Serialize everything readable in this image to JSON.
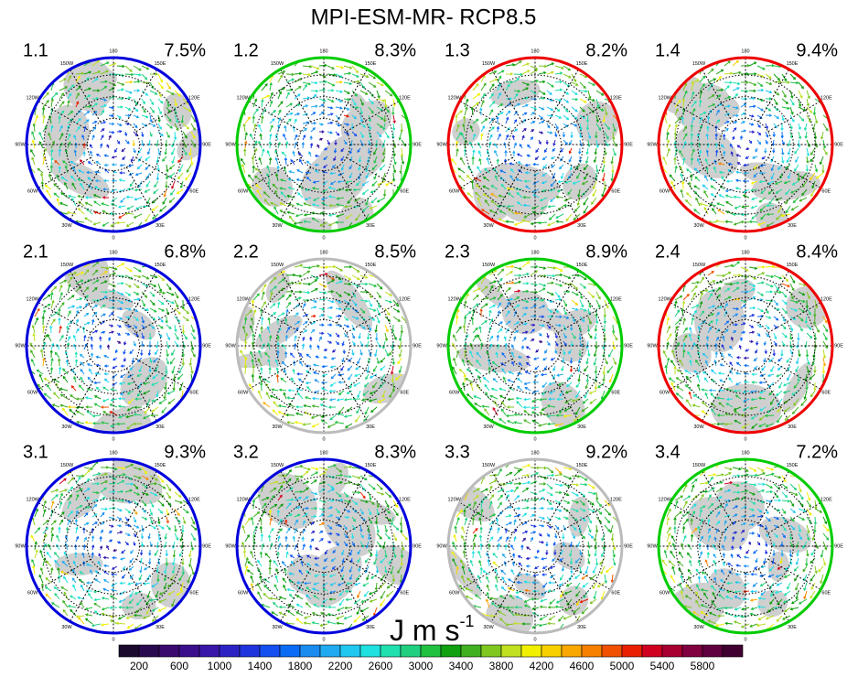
{
  "title": "MPI-ESM-MR- RCP8.5",
  "longitude_labels": [
    "180",
    "150E",
    "120E",
    "90E",
    "60E",
    "30E",
    "0",
    "30W",
    "60W",
    "90W",
    "120W",
    "150W"
  ],
  "panels": [
    {
      "label": "1.1",
      "percent": "7.5%",
      "border_color": "#0000dd"
    },
    {
      "label": "1.2",
      "percent": "8.3%",
      "border_color": "#00cc00"
    },
    {
      "label": "1.3",
      "percent": "8.2%",
      "border_color": "#ee0000"
    },
    {
      "label": "1.4",
      "percent": "9.4%",
      "border_color": "#ee0000"
    },
    {
      "label": "2.1",
      "percent": "6.8%",
      "border_color": "#0000dd"
    },
    {
      "label": "2.2",
      "percent": "8.5%",
      "border_color": "#bbbbbb"
    },
    {
      "label": "2.3",
      "percent": "8.9%",
      "border_color": "#00cc00"
    },
    {
      "label": "2.4",
      "percent": "8.4%",
      "border_color": "#ee0000"
    },
    {
      "label": "3.1",
      "percent": "9.3%",
      "border_color": "#0000dd"
    },
    {
      "label": "3.2",
      "percent": "8.3%",
      "border_color": "#0000dd"
    },
    {
      "label": "3.3",
      "percent": "9.2%",
      "border_color": "#bbbbbb"
    },
    {
      "label": "3.4",
      "percent": "7.2%",
      "border_color": "#00cc00"
    }
  ],
  "unit": {
    "text": "J m s",
    "superscript": "-1"
  },
  "colorbar": {
    "labels": [
      200,
      600,
      1000,
      1400,
      1800,
      2200,
      2600,
      3000,
      3400,
      3800,
      4200,
      4600,
      5000,
      5400,
      5800
    ],
    "colors": [
      "#1a0a2e",
      "#2a0a4e",
      "#3a0a6e",
      "#3b0f8c",
      "#3818a8",
      "#2c22c4",
      "#1f34dc",
      "#1450f0",
      "#0a6cf5",
      "#1a8cf0",
      "#20aaf0",
      "#20c8f0",
      "#20e0e0",
      "#20e0b0",
      "#20d080",
      "#20c040",
      "#10a010",
      "#40b020",
      "#80c820",
      "#c0e020",
      "#f0f000",
      "#f8d000",
      "#f8a800",
      "#f88000",
      "#f05000",
      "#e82000",
      "#d00020",
      "#a80030",
      "#800040",
      "#600040",
      "#400030"
    ]
  }
}
